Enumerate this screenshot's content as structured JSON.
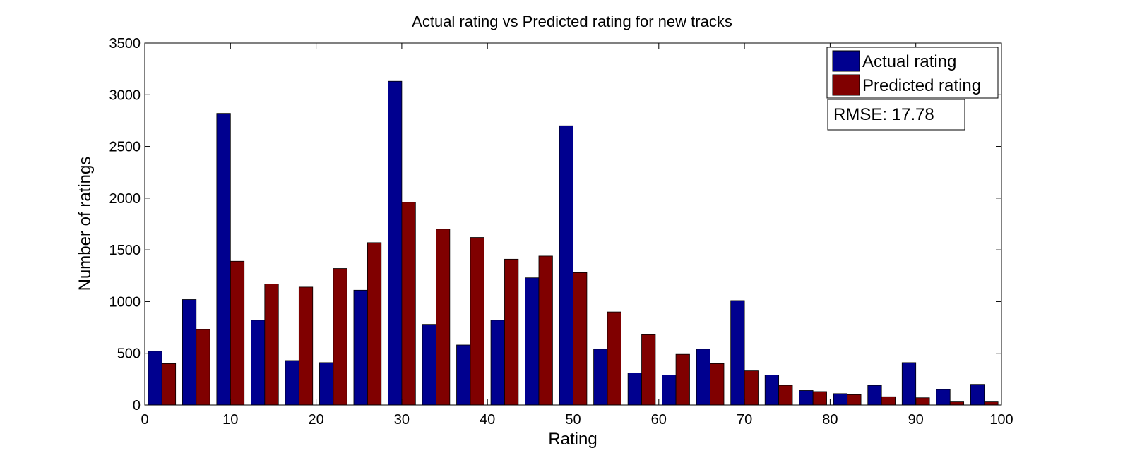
{
  "chart_data": {
    "type": "bar",
    "title": "Actual rating vs Predicted rating for new tracks",
    "xlabel": "Rating",
    "ylabel": "Number of ratings",
    "xlim": [
      0,
      100
    ],
    "ylim": [
      0,
      3500
    ],
    "xticks": [
      0,
      10,
      20,
      30,
      40,
      50,
      60,
      70,
      80,
      90,
      100
    ],
    "yticks": [
      0,
      500,
      1000,
      1500,
      2000,
      2500,
      3000,
      3500
    ],
    "grid": false,
    "legend_position": "top-right",
    "categories": [
      2,
      6,
      10,
      14,
      18,
      22,
      26,
      30,
      34,
      38,
      42,
      46,
      50,
      54,
      58,
      62,
      66,
      70,
      74,
      78,
      82,
      86,
      90,
      94,
      98
    ],
    "series": [
      {
        "name": "Actual rating",
        "color": "#00008f",
        "values": [
          520,
          1020,
          2820,
          820,
          430,
          410,
          1110,
          3130,
          780,
          580,
          820,
          1230,
          2700,
          540,
          310,
          290,
          540,
          1010,
          290,
          140,
          110,
          190,
          410,
          150,
          200
        ]
      },
      {
        "name": "Predicted rating",
        "color": "#800000",
        "values": [
          400,
          730,
          1390,
          1170,
          1140,
          1320,
          1570,
          1960,
          1700,
          1620,
          1410,
          1440,
          1280,
          900,
          680,
          490,
          400,
          330,
          190,
          130,
          100,
          80,
          70,
          30,
          30
        ]
      }
    ],
    "annotation": "RMSE: 17.78"
  }
}
